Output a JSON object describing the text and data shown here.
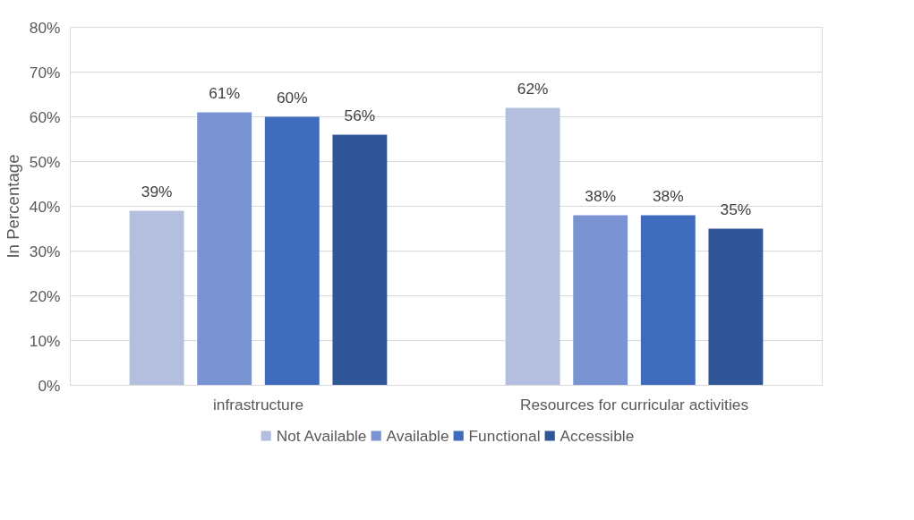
{
  "chart_data": {
    "type": "bar",
    "ylabel": "In Percentage",
    "categories": [
      "infrastructure",
      "Resources for curricular activities"
    ],
    "series": [
      {
        "name": "Not Available",
        "color": "#b4bfe0",
        "values": [
          39,
          62
        ],
        "value_labels": [
          "39%",
          "62%"
        ]
      },
      {
        "name": "Available",
        "color": "#7a93d2",
        "values": [
          61,
          38
        ],
        "value_labels": [
          "61%",
          "38%"
        ]
      },
      {
        "name": "Functional",
        "color": "#3f6bbd",
        "values": [
          60,
          38
        ],
        "value_labels": [
          "60%",
          "38%"
        ]
      },
      {
        "name": "Accessible",
        "color": "#305697",
        "values": [
          56,
          35
        ],
        "value_labels": [
          "56%",
          "35%"
        ]
      }
    ],
    "ylim": [
      0,
      80
    ],
    "yticks": [
      {
        "value": 0,
        "label": "0%"
      },
      {
        "value": 10,
        "label": "10%"
      },
      {
        "value": 20,
        "label": "20%"
      },
      {
        "value": 30,
        "label": "30%"
      },
      {
        "value": 40,
        "label": "40%"
      },
      {
        "value": 50,
        "label": "50%"
      },
      {
        "value": 60,
        "label": "60%"
      },
      {
        "value": 70,
        "label": "70%"
      },
      {
        "value": 80,
        "label": "80%"
      }
    ],
    "grid": "y",
    "legend": "bottom"
  }
}
